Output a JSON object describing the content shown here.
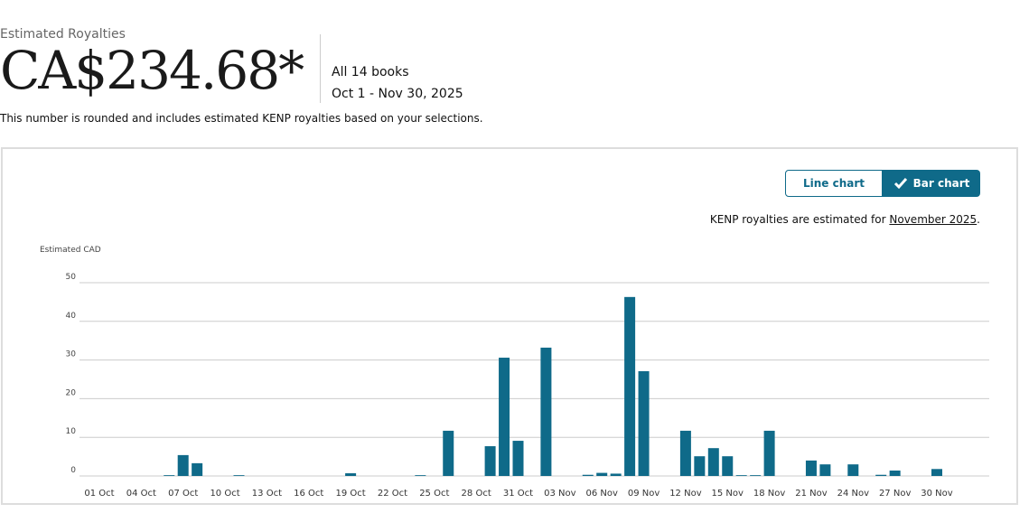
{
  "header": {
    "label": "Estimated Royalties",
    "amount": "CA$234.68*",
    "books": "All 14 books",
    "range": "Oct 1 - Nov 30, 2025",
    "note": "This number is rounded and includes estimated KENP royalties based on your selections."
  },
  "toggle": {
    "line": "Line chart",
    "bar": "Bar chart"
  },
  "kenp": {
    "prefix": "KENP royalties are estimated for",
    "link": "November 2025",
    "suffix": "."
  },
  "chart_data": {
    "type": "bar",
    "y_label": "Estimated CAD",
    "color": "#0f6a89",
    "grid": true,
    "ylim": [
      0,
      50
    ],
    "yticks": [
      0,
      10,
      20,
      30,
      40,
      50
    ],
    "categories": [
      "01 Oct",
      null,
      null,
      "04 Oct",
      null,
      null,
      "07 Oct",
      null,
      null,
      "10 Oct",
      null,
      null,
      "13 Oct",
      null,
      null,
      "16 Oct",
      null,
      null,
      "19 Oct",
      null,
      null,
      "22 Oct",
      null,
      null,
      "25 Oct",
      null,
      null,
      "28 Oct",
      null,
      null,
      "31 Oct",
      null,
      null,
      "03 Nov",
      null,
      null,
      "06 Nov",
      null,
      null,
      "09 Nov",
      null,
      null,
      "12 Nov",
      null,
      null,
      "15 Nov",
      null,
      null,
      "18 Nov",
      null,
      null,
      "21 Nov",
      null,
      null,
      "24 Nov",
      null,
      null,
      "27 Nov",
      null,
      null,
      "30 Nov"
    ],
    "values": [
      0,
      0,
      0,
      0,
      0,
      0.2,
      5.4,
      3.3,
      0,
      0,
      0.2,
      0,
      0,
      0,
      0,
      0,
      0,
      0,
      0.7,
      0,
      0,
      0,
      0,
      0.2,
      0,
      11.7,
      0,
      0,
      7.7,
      30.6,
      9.1,
      0,
      33.2,
      0,
      0,
      0.3,
      0.8,
      0.6,
      46.3,
      27.1,
      0,
      0,
      11.7,
      5.1,
      7.2,
      5.1,
      0.2,
      0.2,
      11.7,
      0,
      0,
      4.0,
      3.0,
      0,
      3.0,
      0,
      0.3,
      1.4,
      0,
      0,
      1.8
    ]
  }
}
